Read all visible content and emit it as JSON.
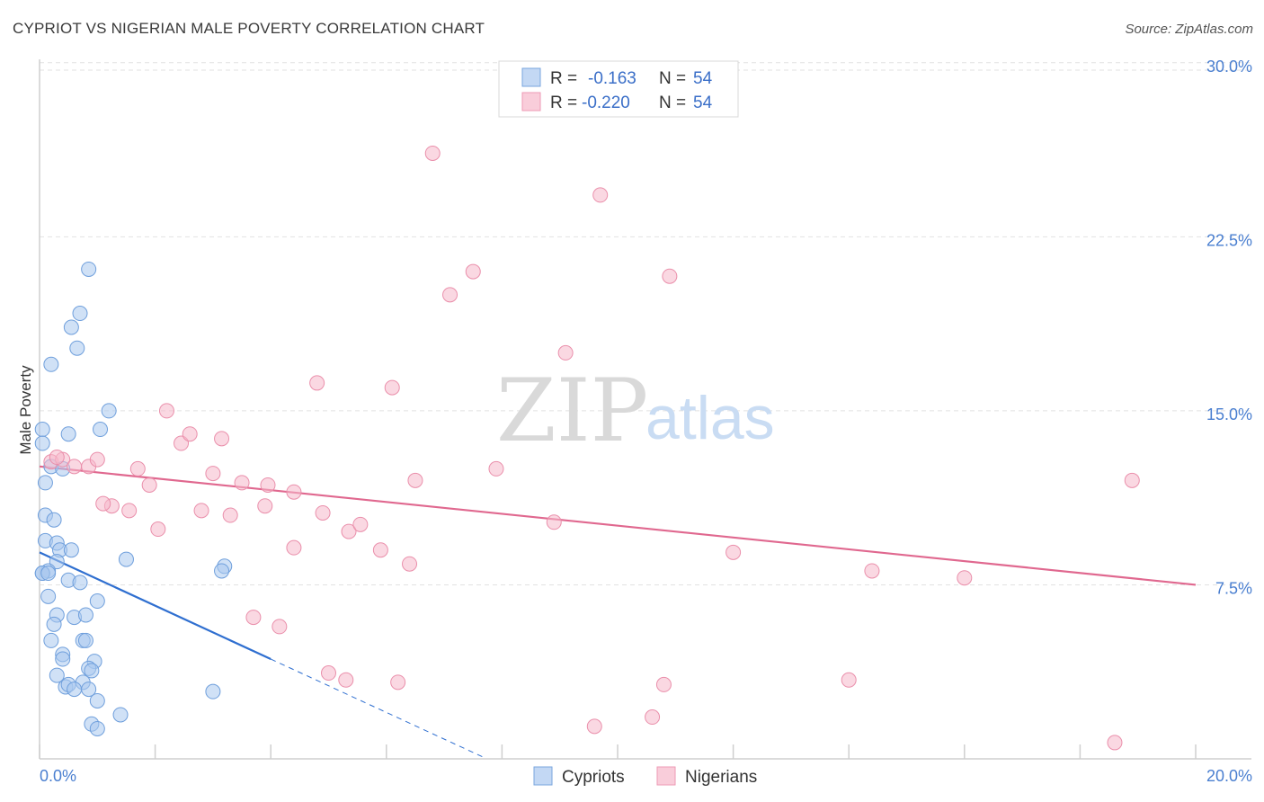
{
  "header": {
    "title": "CYPRIOT VS NIGERIAN MALE POVERTY CORRELATION CHART",
    "source": "Source: ZipAtlas.com"
  },
  "watermark": {
    "zip": "ZIP",
    "atlas": "atlas"
  },
  "legend_box": {
    "rows": [
      {
        "r_label": "R = ",
        "r_value": "-0.163",
        "n_label": "N = ",
        "n_value": "54",
        "color": "#a9c8ef"
      },
      {
        "r_label": "R = ",
        "r_value": "-0.220",
        "n_label": "N = ",
        "n_value": "54",
        "color": "#f6b8cb"
      }
    ]
  },
  "chart_data": {
    "type": "scatter",
    "title": "CYPRIOT VS NIGERIAN MALE POVERTY CORRELATION CHART",
    "xlabel": "",
    "ylabel": "Male Poverty",
    "xlim": [
      0,
      20
    ],
    "ylim": [
      0,
      31
    ],
    "x_tick_labels": [
      "0.0%",
      "20.0%"
    ],
    "y_ticks": [
      7.5,
      15.0,
      22.5,
      30.0
    ],
    "y_tick_labels": [
      "7.5%",
      "15.0%",
      "22.5%",
      "30.0%"
    ],
    "grid": true,
    "legend": "bottom-center",
    "series": [
      {
        "name": "Cypriots",
        "color": "#a9c8ef",
        "stroke": "#6f9fdc",
        "trend": {
          "x0": 0,
          "y0": 8.9,
          "x1": 4.0,
          "y1": 4.3,
          "dash_to_x": 7.7,
          "color": "#2f6fd0"
        },
        "points": [
          [
            0.05,
            14.2
          ],
          [
            0.05,
            13.6
          ],
          [
            0.2,
            12.6
          ],
          [
            0.4,
            12.5
          ],
          [
            0.1,
            11.9
          ],
          [
            0.1,
            10.5
          ],
          [
            0.25,
            10.3
          ],
          [
            0.1,
            9.4
          ],
          [
            0.3,
            9.3
          ],
          [
            0.35,
            9.0
          ],
          [
            0.3,
            8.5
          ],
          [
            0.15,
            8.1
          ],
          [
            0.05,
            8.0
          ],
          [
            0.5,
            7.7
          ],
          [
            0.7,
            7.6
          ],
          [
            0.15,
            7.0
          ],
          [
            1.0,
            6.8
          ],
          [
            0.3,
            6.2
          ],
          [
            0.6,
            6.1
          ],
          [
            0.8,
            6.2
          ],
          [
            0.25,
            5.8
          ],
          [
            0.2,
            5.1
          ],
          [
            0.75,
            5.1
          ],
          [
            0.8,
            5.1
          ],
          [
            0.4,
            4.5
          ],
          [
            0.4,
            4.3
          ],
          [
            0.95,
            4.2
          ],
          [
            0.85,
            3.9
          ],
          [
            0.3,
            3.6
          ],
          [
            0.9,
            3.8
          ],
          [
            0.45,
            3.1
          ],
          [
            0.75,
            3.3
          ],
          [
            0.85,
            3.0
          ],
          [
            0.5,
            3.2
          ],
          [
            0.6,
            3.0
          ],
          [
            1.0,
            2.5
          ],
          [
            1.4,
            1.9
          ],
          [
            0.9,
            1.5
          ],
          [
            1.0,
            1.3
          ],
          [
            0.2,
            17.0
          ],
          [
            0.55,
            18.6
          ],
          [
            0.65,
            17.7
          ],
          [
            0.7,
            19.2
          ],
          [
            0.85,
            21.1
          ],
          [
            1.2,
            15.0
          ],
          [
            1.05,
            14.2
          ],
          [
            0.5,
            14.0
          ],
          [
            1.5,
            8.6
          ],
          [
            3.2,
            8.3
          ],
          [
            3.15,
            8.1
          ],
          [
            3.0,
            2.9
          ],
          [
            0.55,
            9.0
          ],
          [
            0.05,
            8.0
          ],
          [
            0.15,
            8.0
          ]
        ]
      },
      {
        "name": "Nigerians",
        "color": "#f6b8cb",
        "stroke": "#ea8fab",
        "trend": {
          "x0": 0,
          "y0": 12.6,
          "x1": 20,
          "y1": 7.5,
          "color": "#e0688f"
        },
        "points": [
          [
            0.2,
            12.8
          ],
          [
            0.4,
            12.9
          ],
          [
            0.6,
            12.6
          ],
          [
            0.85,
            12.6
          ],
          [
            1.0,
            12.9
          ],
          [
            1.7,
            12.5
          ],
          [
            1.9,
            11.8
          ],
          [
            2.05,
            9.9
          ],
          [
            2.2,
            15.0
          ],
          [
            2.45,
            13.6
          ],
          [
            2.6,
            14.0
          ],
          [
            2.8,
            10.7
          ],
          [
            3.0,
            12.3
          ],
          [
            3.3,
            10.5
          ],
          [
            3.15,
            13.8
          ],
          [
            3.5,
            11.9
          ],
          [
            3.9,
            10.9
          ],
          [
            3.95,
            11.8
          ],
          [
            4.4,
            11.5
          ],
          [
            4.4,
            9.1
          ],
          [
            4.8,
            16.2
          ],
          [
            4.9,
            10.6
          ],
          [
            5.35,
            9.8
          ],
          [
            5.55,
            10.1
          ],
          [
            5.9,
            9.0
          ],
          [
            6.1,
            16.0
          ],
          [
            6.4,
            8.4
          ],
          [
            6.5,
            12.0
          ],
          [
            6.8,
            26.1
          ],
          [
            7.1,
            20.0
          ],
          [
            7.5,
            21.0
          ],
          [
            7.9,
            12.5
          ],
          [
            8.9,
            10.2
          ],
          [
            9.1,
            17.5
          ],
          [
            9.7,
            24.3
          ],
          [
            10.9,
            20.8
          ],
          [
            12.0,
            8.9
          ],
          [
            14.0,
            3.4
          ],
          [
            14.4,
            8.1
          ],
          [
            16.0,
            7.8
          ],
          [
            18.9,
            12.0
          ],
          [
            18.6,
            0.7
          ],
          [
            3.7,
            6.1
          ],
          [
            4.15,
            5.7
          ],
          [
            5.0,
            3.7
          ],
          [
            5.3,
            3.4
          ],
          [
            6.2,
            3.3
          ],
          [
            9.6,
            1.4
          ],
          [
            10.6,
            1.8
          ],
          [
            10.8,
            3.2
          ],
          [
            1.25,
            10.9
          ],
          [
            1.1,
            11.0
          ],
          [
            1.55,
            10.7
          ],
          [
            0.3,
            13.0
          ]
        ]
      }
    ]
  }
}
